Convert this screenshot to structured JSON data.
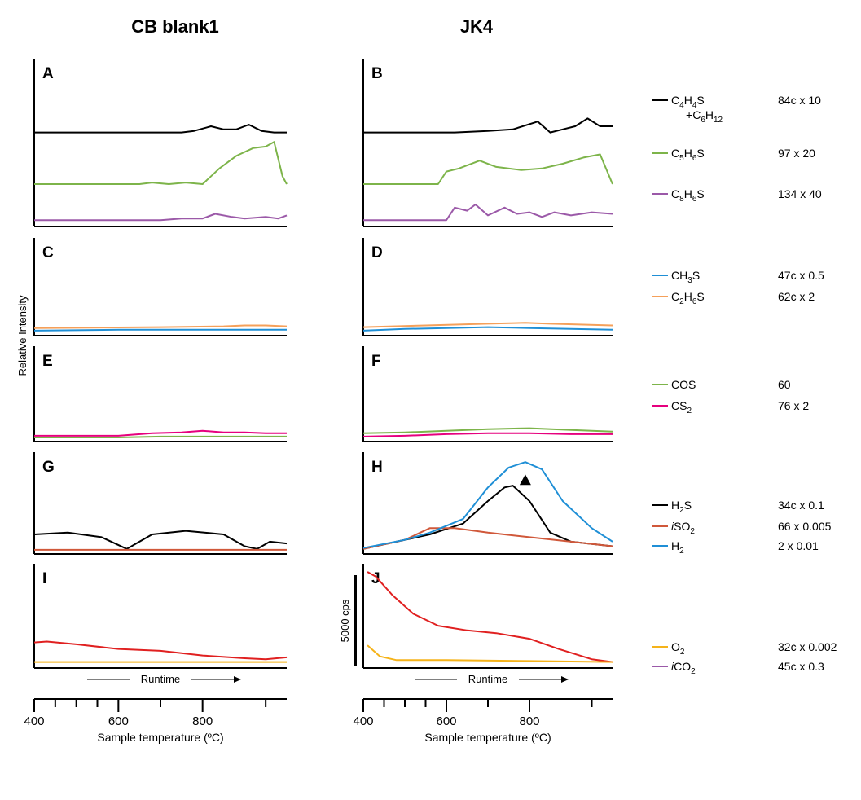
{
  "columns": [
    {
      "title": "CB blank1"
    },
    {
      "title": "JK4"
    }
  ],
  "ylabel": "Relative Intensity",
  "runtime_label": "Runtime",
  "xaxis": {
    "label": "Sample temperature (ºC)",
    "major_ticks": [
      400,
      600,
      800
    ],
    "minor_ticks": [
      450,
      500,
      550,
      700,
      950
    ]
  },
  "scale_bar": {
    "label": "5000 cps"
  },
  "legend_groups": [
    {
      "panels": [
        "A",
        "B"
      ],
      "entries": [
        {
          "label": "C4H4S",
          "label2": "+C6H12",
          "color": "#000000",
          "factor": "84c  x 10"
        },
        {
          "label": "C5H6S",
          "color": "#7db44a",
          "factor": "97  x 20"
        },
        {
          "label": "C8H6S",
          "color": "#9b59a8",
          "factor": "134  x 40"
        }
      ]
    },
    {
      "panels": [
        "C",
        "D"
      ],
      "entries": [
        {
          "label": "CH3S",
          "color": "#1f8fd6",
          "factor": "47c  x 0.5"
        },
        {
          "label": "C2H6S",
          "color": "#f5a05a",
          "factor": "62c  x 2"
        }
      ]
    },
    {
      "panels": [
        "E",
        "F"
      ],
      "entries": [
        {
          "label": "COS",
          "color": "#7db44a",
          "factor": "60"
        },
        {
          "label": "CS2",
          "color": "#e6007e",
          "factor": "76  x 2"
        }
      ]
    },
    {
      "panels": [
        "G",
        "H"
      ],
      "entries": [
        {
          "label": "H2S",
          "color": "#000000",
          "factor": "34c  x 0.1"
        },
        {
          "label": "iSO2",
          "color": "#d0583a",
          "factor": "66  x 0.005"
        },
        {
          "label": "H2",
          "color": "#1f8fd6",
          "factor": "2  x 0.01"
        }
      ]
    },
    {
      "panels": [
        "I",
        "J"
      ],
      "entries": [
        {
          "label": "O2",
          "color": "#f5b31a",
          "factor": "32c  x 0.002"
        },
        {
          "label": "iCO2",
          "color": "#9b59a8",
          "factor": "45c  x 0.3"
        }
      ]
    }
  ],
  "chart_data": [
    {
      "panel": "A",
      "type": "line",
      "xlim": [
        400,
        1000
      ],
      "ylim": [
        0,
        1
      ],
      "series": [
        {
          "color": "#000000",
          "x": [
            400,
            750,
            780,
            820,
            850,
            880,
            910,
            940,
            970,
            1000
          ],
          "y": [
            0.58,
            0.58,
            0.59,
            0.62,
            0.6,
            0.6,
            0.63,
            0.59,
            0.58,
            0.58
          ]
        },
        {
          "color": "#7db44a",
          "x": [
            400,
            650,
            680,
            720,
            760,
            800,
            840,
            880,
            920,
            950,
            970,
            990,
            1000
          ],
          "y": [
            0.25,
            0.25,
            0.26,
            0.25,
            0.26,
            0.25,
            0.35,
            0.43,
            0.48,
            0.49,
            0.52,
            0.3,
            0.25
          ]
        },
        {
          "color": "#9b59a8",
          "x": [
            400,
            700,
            750,
            800,
            830,
            870,
            900,
            950,
            980,
            1000
          ],
          "y": [
            0.02,
            0.02,
            0.03,
            0.03,
            0.06,
            0.04,
            0.03,
            0.04,
            0.03,
            0.05
          ]
        }
      ]
    },
    {
      "panel": "B",
      "type": "line",
      "xlim": [
        400,
        1000
      ],
      "ylim": [
        0,
        1
      ],
      "series": [
        {
          "color": "#000000",
          "x": [
            400,
            620,
            700,
            760,
            820,
            850,
            880,
            910,
            940,
            970,
            1000
          ],
          "y": [
            0.58,
            0.58,
            0.59,
            0.6,
            0.65,
            0.58,
            0.6,
            0.62,
            0.67,
            0.62,
            0.62
          ]
        },
        {
          "color": "#7db44a",
          "x": [
            400,
            580,
            600,
            630,
            680,
            720,
            780,
            830,
            880,
            930,
            970,
            1000
          ],
          "y": [
            0.25,
            0.25,
            0.33,
            0.35,
            0.4,
            0.36,
            0.34,
            0.35,
            0.38,
            0.42,
            0.44,
            0.25
          ]
        },
        {
          "color": "#9b59a8",
          "x": [
            400,
            600,
            620,
            650,
            670,
            700,
            740,
            770,
            800,
            830,
            860,
            900,
            950,
            1000
          ],
          "y": [
            0.02,
            0.02,
            0.1,
            0.08,
            0.12,
            0.05,
            0.1,
            0.06,
            0.07,
            0.04,
            0.07,
            0.05,
            0.07,
            0.06
          ]
        }
      ]
    },
    {
      "panel": "C",
      "type": "line",
      "xlim": [
        400,
        1000
      ],
      "ylim": [
        0,
        1
      ],
      "series": [
        {
          "color": "#1f8fd6",
          "x": [
            400,
            600,
            800,
            1000
          ],
          "y": [
            0.02,
            0.03,
            0.03,
            0.03
          ]
        },
        {
          "color": "#f5a05a",
          "x": [
            400,
            700,
            850,
            900,
            950,
            1000
          ],
          "y": [
            0.05,
            0.06,
            0.07,
            0.08,
            0.08,
            0.07
          ]
        }
      ]
    },
    {
      "panel": "D",
      "type": "line",
      "xlim": [
        400,
        1000
      ],
      "ylim": [
        0,
        1
      ],
      "series": [
        {
          "color": "#1f8fd6",
          "x": [
            400,
            500,
            600,
            700,
            800,
            900,
            1000
          ],
          "y": [
            0.02,
            0.04,
            0.05,
            0.06,
            0.05,
            0.04,
            0.03
          ]
        },
        {
          "color": "#f5a05a",
          "x": [
            400,
            550,
            700,
            790,
            850,
            1000
          ],
          "y": [
            0.06,
            0.08,
            0.1,
            0.11,
            0.1,
            0.08
          ]
        }
      ]
    },
    {
      "panel": "E",
      "type": "line",
      "xlim": [
        400,
        1000
      ],
      "ylim": [
        0,
        1
      ],
      "series": [
        {
          "color": "#7db44a",
          "x": [
            400,
            600,
            700,
            900,
            1000
          ],
          "y": [
            0.01,
            0.01,
            0.02,
            0.02,
            0.02
          ]
        },
        {
          "color": "#e6007e",
          "x": [
            400,
            600,
            680,
            750,
            800,
            850,
            900,
            950,
            1000
          ],
          "y": [
            0.03,
            0.03,
            0.06,
            0.07,
            0.09,
            0.07,
            0.07,
            0.06,
            0.06
          ]
        }
      ]
    },
    {
      "panel": "F",
      "type": "line",
      "xlim": [
        400,
        1000
      ],
      "ylim": [
        0,
        1
      ],
      "series": [
        {
          "color": "#7db44a",
          "x": [
            400,
            500,
            600,
            700,
            800,
            900,
            1000
          ],
          "y": [
            0.06,
            0.07,
            0.09,
            0.11,
            0.12,
            0.1,
            0.08
          ]
        },
        {
          "color": "#e6007e",
          "x": [
            400,
            500,
            600,
            700,
            800,
            900,
            1000
          ],
          "y": [
            0.02,
            0.03,
            0.05,
            0.06,
            0.06,
            0.05,
            0.05
          ]
        }
      ]
    },
    {
      "panel": "G",
      "type": "line",
      "xlim": [
        400,
        1000
      ],
      "ylim": [
        0,
        1
      ],
      "series": [
        {
          "color": "#000000",
          "x": [
            400,
            480,
            560,
            620,
            680,
            760,
            850,
            900,
            930,
            960,
            1000
          ],
          "y": [
            0.18,
            0.2,
            0.15,
            0.02,
            0.18,
            0.22,
            0.18,
            0.05,
            0.02,
            0.1,
            0.08
          ]
        },
        {
          "color": "#d0583a",
          "x": [
            400,
            1000
          ],
          "y": [
            0.01,
            0.01
          ]
        }
      ]
    },
    {
      "panel": "H",
      "type": "line",
      "xlim": [
        400,
        1000
      ],
      "ylim": [
        0,
        1
      ],
      "series": [
        {
          "color": "#000000",
          "x": [
            400,
            480,
            560,
            640,
            700,
            740,
            760,
            800,
            850,
            900,
            1000
          ],
          "y": [
            0.02,
            0.1,
            0.18,
            0.3,
            0.55,
            0.7,
            0.72,
            0.55,
            0.2,
            0.1,
            0.05
          ]
        },
        {
          "color": "#d0583a",
          "x": [
            400,
            500,
            560,
            620,
            700,
            800,
            900,
            1000
          ],
          "y": [
            0.02,
            0.12,
            0.25,
            0.25,
            0.2,
            0.15,
            0.1,
            0.05
          ]
        },
        {
          "color": "#1f8fd6",
          "x": [
            400,
            500,
            560,
            640,
            700,
            750,
            790,
            830,
            880,
            950,
            1000
          ],
          "y": [
            0.03,
            0.12,
            0.2,
            0.35,
            0.7,
            0.92,
            0.98,
            0.9,
            0.55,
            0.25,
            0.1
          ]
        }
      ]
    },
    {
      "panel": "I",
      "type": "line",
      "xlim": [
        400,
        1000
      ],
      "ylim": [
        0,
        1
      ],
      "series": [
        {
          "color": "#e02020",
          "x": [
            400,
            430,
            500,
            600,
            700,
            800,
            900,
            950,
            1000
          ],
          "y": [
            0.24,
            0.25,
            0.22,
            0.17,
            0.15,
            0.1,
            0.07,
            0.06,
            0.08
          ]
        },
        {
          "color": "#f5b31a",
          "x": [
            400,
            1000
          ],
          "y": [
            0.03,
            0.03
          ]
        }
      ]
    },
    {
      "panel": "J",
      "type": "line",
      "xlim": [
        400,
        1000
      ],
      "ylim": [
        0,
        1
      ],
      "series": [
        {
          "color": "#e02020",
          "x": [
            410,
            430,
            470,
            520,
            580,
            650,
            720,
            800,
            870,
            950,
            1000
          ],
          "y": [
            1.0,
            0.95,
            0.75,
            0.55,
            0.42,
            0.37,
            0.34,
            0.28,
            0.17,
            0.06,
            0.03
          ]
        },
        {
          "color": "#f5b31a",
          "x": [
            410,
            440,
            480,
            600,
            800,
            1000
          ],
          "y": [
            0.21,
            0.09,
            0.05,
            0.05,
            0.04,
            0.03
          ]
        }
      ]
    }
  ]
}
